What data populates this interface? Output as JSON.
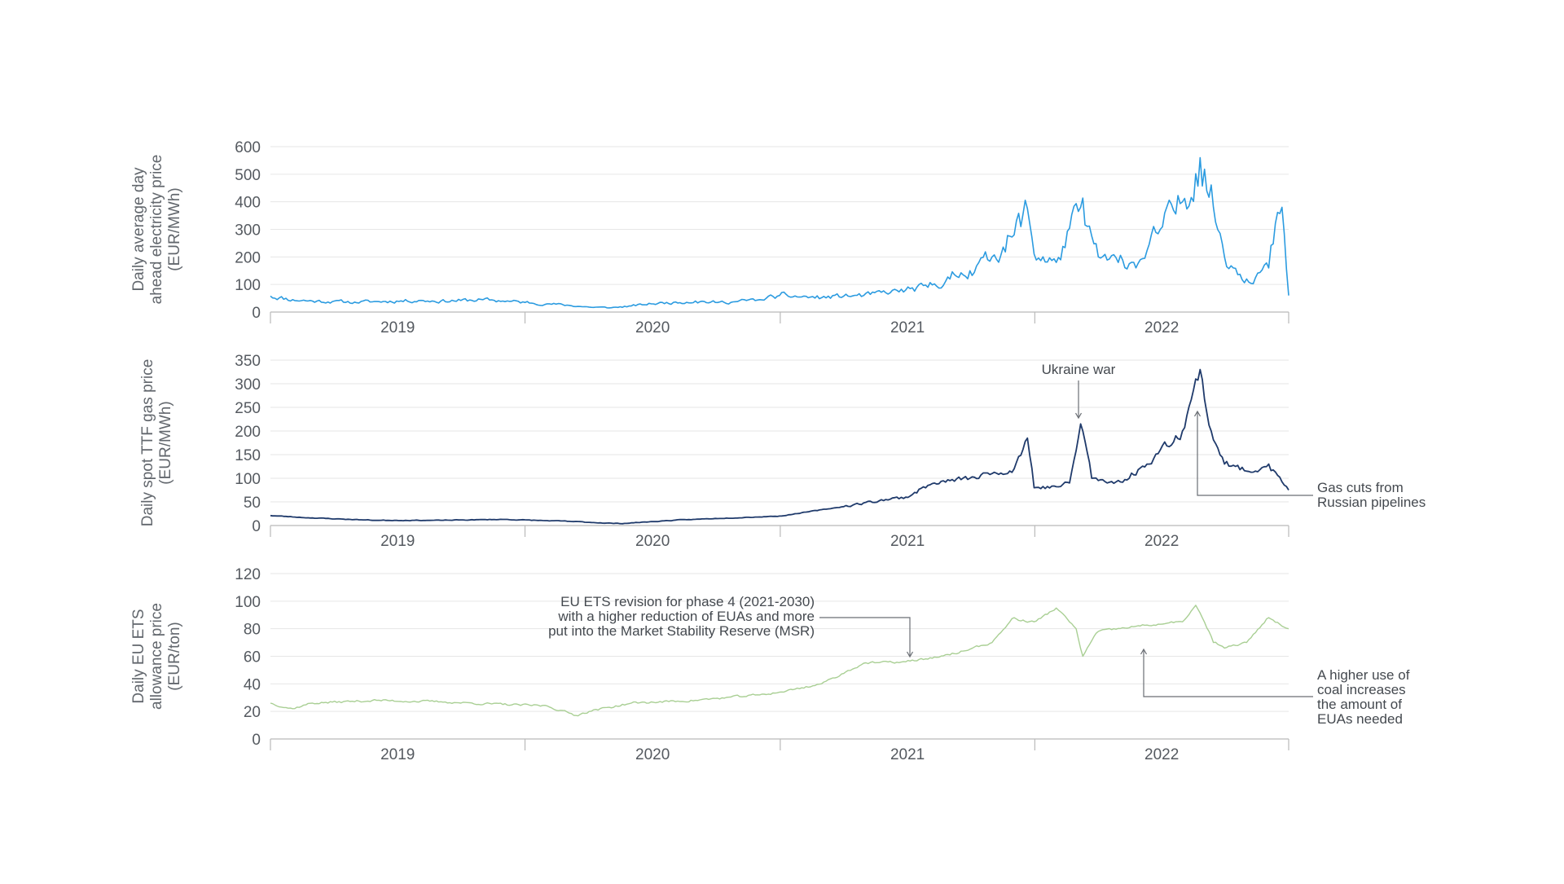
{
  "colors": {
    "electricity": "#2b9be0",
    "gas": "#1f3a6b",
    "ets": "#a9cf94",
    "grid": "#e6e6e6",
    "axis": "#b9b9b9",
    "annotation_line": "#6a6e74"
  },
  "chart_data": [
    {
      "type": "line",
      "name": "electricity",
      "ylabel_lines": [
        "Daily average day",
        "ahead  electricity price",
        "(EUR/MWh)"
      ],
      "ylim": [
        0,
        600
      ],
      "yticks": [
        0,
        100,
        200,
        300,
        400,
        500,
        600
      ],
      "xlim": [
        "2019-01-01",
        "2022-12-31"
      ],
      "years": [
        "2019",
        "2020",
        "2021",
        "2022"
      ],
      "grid": "horizontal",
      "series": [
        {
          "x": [
            "2019-01-01",
            "2019-02-01",
            "2019-03-01",
            "2019-04-01",
            "2019-05-01",
            "2019-06-01",
            "2019-07-01",
            "2019-08-01",
            "2019-09-01",
            "2019-10-01",
            "2019-11-01",
            "2019-12-01",
            "2020-01-01",
            "2020-02-01",
            "2020-03-01",
            "2020-04-01",
            "2020-05-01",
            "2020-06-01",
            "2020-07-01",
            "2020-08-01",
            "2020-09-01",
            "2020-10-01",
            "2020-11-01",
            "2020-12-01",
            "2021-01-01",
            "2021-02-01",
            "2021-03-01",
            "2021-04-01",
            "2021-05-01",
            "2021-06-01",
            "2021-07-01",
            "2021-08-01",
            "2021-09-01",
            "2021-10-01",
            "2021-11-01",
            "2021-12-01",
            "2021-12-21",
            "2022-01-01",
            "2022-02-01",
            "2022-03-08",
            "2022-04-01",
            "2022-05-01",
            "2022-06-01",
            "2022-07-01",
            "2022-08-01",
            "2022-08-26",
            "2022-09-15",
            "2022-10-01",
            "2022-11-01",
            "2022-12-01",
            "2022-12-20",
            "2022-12-31"
          ],
          "y": [
            58,
            45,
            40,
            38,
            36,
            38,
            40,
            42,
            40,
            42,
            45,
            40,
            35,
            30,
            25,
            18,
            15,
            22,
            30,
            35,
            40,
            35,
            38,
            45,
            60,
            55,
            52,
            58,
            60,
            70,
            80,
            90,
            120,
            150,
            200,
            280,
            375,
            210,
            180,
            380,
            200,
            180,
            190,
            300,
            400,
            560,
            380,
            200,
            120,
            160,
            380,
            60
          ]
        }
      ]
    },
    {
      "type": "line",
      "name": "gas",
      "ylabel_lines": [
        "Daily spot TTF gas price",
        "(EUR/MWh)"
      ],
      "ylim": [
        0,
        350
      ],
      "yticks": [
        0,
        50,
        100,
        150,
        200,
        250,
        300,
        350
      ],
      "xlim": [
        "2019-01-01",
        "2022-12-31"
      ],
      "years": [
        "2019",
        "2020",
        "2021",
        "2022"
      ],
      "grid": "horizontal",
      "series": [
        {
          "x": [
            "2019-01-01",
            "2019-03-01",
            "2019-06-01",
            "2019-09-01",
            "2019-12-01",
            "2020-03-01",
            "2020-05-15",
            "2020-08-01",
            "2020-10-01",
            "2021-01-01",
            "2021-04-01",
            "2021-06-01",
            "2021-07-01",
            "2021-08-01",
            "2021-09-01",
            "2021-10-01",
            "2021-11-01",
            "2021-12-01",
            "2021-12-21",
            "2022-01-01",
            "2022-02-01",
            "2022-02-20",
            "2022-03-08",
            "2022-03-25",
            "2022-04-15",
            "2022-05-15",
            "2022-06-10",
            "2022-07-01",
            "2022-08-01",
            "2022-08-26",
            "2022-09-10",
            "2022-10-01",
            "2022-11-01",
            "2022-12-01",
            "2022-12-31"
          ],
          "y": [
            21,
            16,
            11,
            11,
            13,
            9,
            4,
            11,
            15,
            20,
            40,
            55,
            60,
            85,
            95,
            100,
            110,
            120,
            185,
            80,
            82,
            90,
            215,
            100,
            90,
            100,
            130,
            160,
            200,
            330,
            200,
            130,
            115,
            130,
            75
          ]
        }
      ]
    },
    {
      "type": "line",
      "name": "ets",
      "ylabel_lines": [
        "Daily EU ETS",
        "allowance price",
        "(EUR/ton)"
      ],
      "ylim": [
        0,
        120
      ],
      "yticks": [
        0,
        20,
        40,
        60,
        80,
        100,
        120
      ],
      "xlim": [
        "2019-01-01",
        "2022-12-31"
      ],
      "years": [
        "2019",
        "2020",
        "2021",
        "2022"
      ],
      "grid": "horizontal",
      "series": [
        {
          "x": [
            "2019-01-01",
            "2019-02-01",
            "2019-03-01",
            "2019-06-01",
            "2019-09-01",
            "2019-12-01",
            "2020-02-01",
            "2020-03-15",
            "2020-04-01",
            "2020-06-01",
            "2020-09-01",
            "2020-12-01",
            "2021-01-01",
            "2021-03-01",
            "2021-05-01",
            "2021-07-01",
            "2021-09-01",
            "2021-11-01",
            "2021-12-01",
            "2021-12-10",
            "2022-01-01",
            "2022-02-01",
            "2022-03-01",
            "2022-03-10",
            "2022-04-01",
            "2022-06-01",
            "2022-08-01",
            "2022-08-20",
            "2022-09-15",
            "2022-10-01",
            "2022-11-01",
            "2022-12-01",
            "2022-12-31"
          ],
          "y": [
            26,
            22,
            26,
            28,
            27,
            25,
            24,
            17,
            20,
            26,
            28,
            32,
            34,
            40,
            55,
            56,
            61,
            70,
            88,
            86,
            85,
            95,
            80,
            60,
            78,
            82,
            85,
            97,
            70,
            66,
            70,
            88,
            80
          ]
        }
      ]
    }
  ],
  "annotations": {
    "ukraine": "Ukraine war",
    "gas_cuts": [
      "Gas cuts from",
      "Russian pipelines"
    ],
    "ets_revision": [
      "EU ETS revision for phase 4 (2021-2030)",
      "with a higher reduction of EUAs and more",
      "put into the Market Stability Reserve (MSR)"
    ],
    "coal": [
      "A higher use of",
      "coal increases",
      "the amount of",
      "EUAs needed"
    ]
  }
}
